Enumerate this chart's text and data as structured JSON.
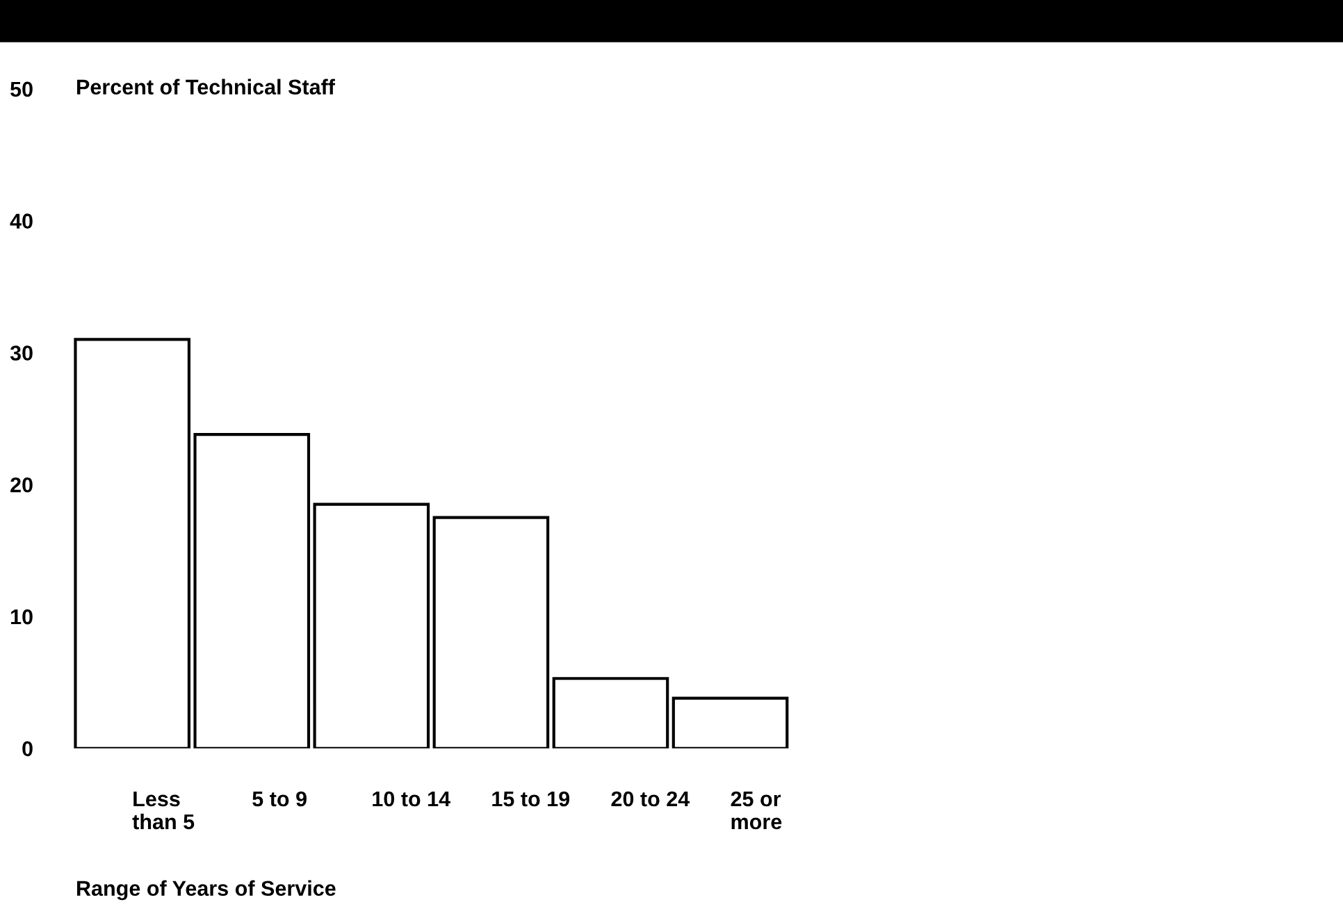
{
  "chart_data": {
    "type": "bar",
    "ylabel": "Percent of Technical Staff",
    "xlabel": "Range of Years of Service",
    "categories": [
      "Less\nthan 5",
      "5 to 9",
      "10 to 14",
      "15 to 19",
      "20 to 24",
      "25 or\nmore"
    ],
    "values": [
      31,
      23.8,
      18.5,
      17.5,
      5.3,
      3.8
    ],
    "color": "#ffffff",
    "ylim": [
      0,
      50
    ],
    "yticks": [
      0,
      10,
      20,
      30,
      40,
      50
    ],
    "grid": false
  }
}
